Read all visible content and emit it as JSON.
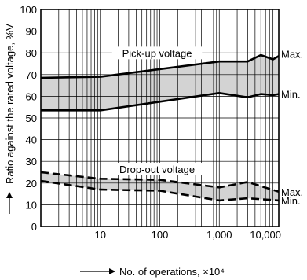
{
  "chart_data": {
    "type": "line",
    "xlabel": "No. of operations, ×10⁴",
    "ylabel": "Ratio against the rated voltage, %V",
    "x_scale": "log",
    "xlim": [
      1,
      10000
    ],
    "ylim": [
      0,
      100
    ],
    "x_ticks": [
      {
        "value": 10,
        "label": "10"
      },
      {
        "value": 100,
        "label": "100"
      },
      {
        "value": 1000,
        "label": "1,000"
      },
      {
        "value": 10000,
        "label": "10,000"
      }
    ],
    "y_ticks": [
      0,
      10,
      20,
      30,
      40,
      50,
      60,
      70,
      80,
      90,
      100
    ],
    "grid": true,
    "bands": [
      {
        "name": "Pick-up voltage",
        "fill": "#d3d3d3",
        "upper": {
          "label": "Max.",
          "style": "solid",
          "x": [
            1,
            10,
            1000,
            3000,
            5000,
            8000,
            10000
          ],
          "y": [
            68.5,
            69,
            76,
            76,
            79,
            77,
            78.5
          ]
        },
        "lower": {
          "label": "Min.",
          "style": "solid",
          "x": [
            1,
            10,
            1000,
            3000,
            5000,
            8000,
            10000
          ],
          "y": [
            53.5,
            53.5,
            61.5,
            59.5,
            61,
            60.5,
            61
          ]
        }
      },
      {
        "name": "Drop-out voltage",
        "fill": "#d3d3d3",
        "upper": {
          "label": "Max.",
          "style": "dashed",
          "x": [
            1,
            10,
            100,
            1000,
            3000,
            10000
          ],
          "y": [
            25,
            22,
            21.5,
            18,
            20.5,
            16
          ]
        },
        "lower": {
          "label": "Min.",
          "style": "dashed",
          "x": [
            1,
            10,
            100,
            1000,
            3000,
            10000
          ],
          "y": [
            21,
            17,
            16.5,
            12,
            13,
            12
          ]
        }
      }
    ]
  }
}
